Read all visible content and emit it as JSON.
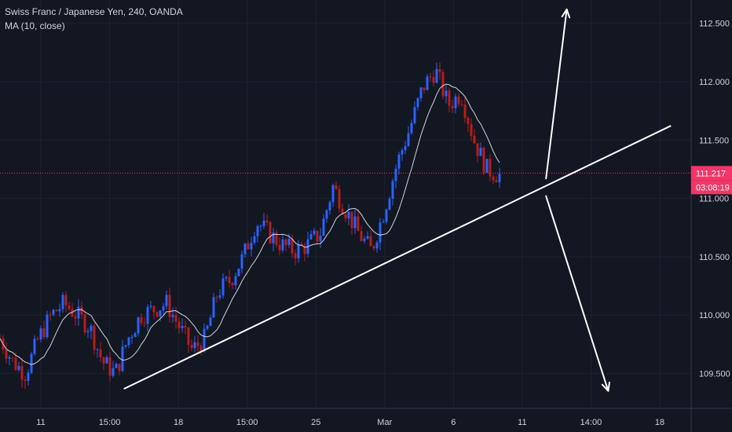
{
  "chart_data": {
    "type": "candlestick",
    "title": "Swiss Franc / Japanese Yen, 240, OANDA",
    "indicator": "MA (10, close)",
    "y_ticks": [
      109.5,
      110.0,
      110.5,
      111.0,
      111.5,
      112.0,
      112.5
    ],
    "y_tick_labels": [
      "109.500",
      "110.000",
      "110.500",
      "111.000",
      "111.500",
      "112.000",
      "112.500"
    ],
    "ylim": [
      109.2,
      112.7
    ],
    "x_ticks": [
      "11",
      "15:00",
      "18",
      "15:00",
      "25",
      "Mar",
      "6",
      "11",
      "14:00",
      "18"
    ],
    "last_price": 111.217,
    "last_price_label": "111.217",
    "countdown": "03:08:19",
    "colors": {
      "background": "#131722",
      "up": "#2962ff",
      "down": "#b71c1c",
      "ma": "#d1d4dc",
      "price_line": "#f23669",
      "axis_text": "#d1d4dc",
      "drawing": "#ffffff"
    },
    "price_path": [
      109.8,
      109.6,
      109.5,
      109.8,
      110.0,
      110.1,
      110.0,
      109.9,
      109.6,
      109.5,
      109.8,
      110.0,
      110.05,
      110.1,
      109.9,
      109.7,
      109.8,
      110.2,
      110.3,
      110.5,
      110.8,
      110.7,
      110.6,
      110.55,
      110.6,
      110.7,
      111.1,
      110.9,
      110.7,
      110.55,
      110.9,
      111.3,
      111.6,
      111.95,
      112.1,
      111.8,
      111.9,
      111.5,
      111.25,
      111.2
    ],
    "annotations": [
      {
        "type": "trendline",
        "from": {
          "x": 0.18,
          "y": 109.37
        },
        "to": {
          "x": 0.97,
          "y": 111.62
        }
      },
      {
        "type": "arrow",
        "from": {
          "x": 0.79,
          "y": 111.17
        },
        "to": {
          "x": 0.82,
          "y": 112.62
        }
      },
      {
        "type": "arrow",
        "from": {
          "x": 0.79,
          "y": 111.02
        },
        "to": {
          "x": 0.88,
          "y": 109.35
        }
      }
    ]
  }
}
